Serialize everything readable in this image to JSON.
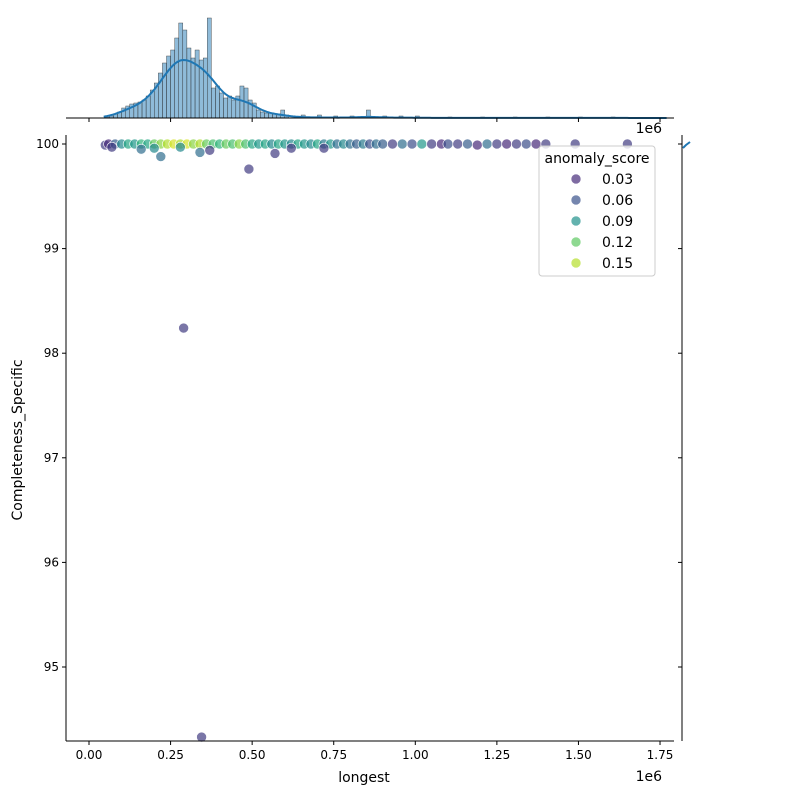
{
  "chart_data": [
    {
      "type": "scatter",
      "xlabel": "longest",
      "ylabel": "Completeness_Specific",
      "x_offset_label": "1e6",
      "xlim": [
        -0.07,
        1.77
      ],
      "ylim": [
        94.3,
        100.09
      ],
      "x_ticks": [
        0.0,
        0.25,
        0.5,
        0.75,
        1.0,
        1.25,
        1.5,
        1.75
      ],
      "x_tick_labels": [
        "0.00",
        "0.25",
        "0.50",
        "0.75",
        "1.00",
        "1.25",
        "1.50",
        "1.75"
      ],
      "y_ticks": [
        95,
        96,
        97,
        98,
        99,
        100
      ],
      "y_tick_labels": [
        "95",
        "96",
        "97",
        "98",
        "99",
        "100"
      ],
      "grid": false,
      "hue": "anomaly_score",
      "colormap": "viridis",
      "legend": {
        "title": "anomaly_score",
        "placement": "upper-right",
        "entries": [
          {
            "label": "0.03",
            "color": "#472c7a"
          },
          {
            "label": "0.06",
            "color": "#3b528b"
          },
          {
            "label": "0.09",
            "color": "#21918c"
          },
          {
            "label": "0.12",
            "color": "#5ec962"
          },
          {
            "label": "0.15",
            "color": "#b5de2b"
          }
        ]
      },
      "points": [
        [
          0.05,
          99.99,
          0.03
        ],
        [
          0.06,
          100,
          0.02
        ],
        [
          0.08,
          100,
          0.05
        ],
        [
          0.1,
          100,
          0.08
        ],
        [
          0.12,
          100,
          0.1
        ],
        [
          0.14,
          100,
          0.09
        ],
        [
          0.16,
          100,
          0.11
        ],
        [
          0.18,
          100,
          0.1
        ],
        [
          0.2,
          100,
          0.13
        ],
        [
          0.22,
          100,
          0.14
        ],
        [
          0.24,
          100,
          0.15
        ],
        [
          0.26,
          100,
          0.16
        ],
        [
          0.28,
          100,
          0.15
        ],
        [
          0.3,
          100,
          0.16
        ],
        [
          0.32,
          100,
          0.14
        ],
        [
          0.34,
          100,
          0.15
        ],
        [
          0.36,
          100,
          0.13
        ],
        [
          0.38,
          100,
          0.12
        ],
        [
          0.4,
          100,
          0.11
        ],
        [
          0.42,
          100,
          0.13
        ],
        [
          0.44,
          100,
          0.12
        ],
        [
          0.46,
          100,
          0.14
        ],
        [
          0.48,
          100,
          0.12
        ],
        [
          0.5,
          100,
          0.1
        ],
        [
          0.52,
          100,
          0.09
        ],
        [
          0.54,
          100,
          0.1
        ],
        [
          0.56,
          100,
          0.08
        ],
        [
          0.58,
          100,
          0.1
        ],
        [
          0.6,
          100,
          0.09
        ],
        [
          0.62,
          100,
          0.08
        ],
        [
          0.64,
          100,
          0.1
        ],
        [
          0.66,
          100,
          0.09
        ],
        [
          0.68,
          100,
          0.08
        ],
        [
          0.7,
          100,
          0.1
        ],
        [
          0.72,
          100,
          0.07
        ],
        [
          0.74,
          100,
          0.09
        ],
        [
          0.76,
          100,
          0.06
        ],
        [
          0.78,
          100,
          0.08
        ],
        [
          0.8,
          100,
          0.06
        ],
        [
          0.82,
          100,
          0.05
        ],
        [
          0.84,
          100,
          0.07
        ],
        [
          0.86,
          100,
          0.04
        ],
        [
          0.88,
          100,
          0.06
        ],
        [
          0.9,
          100,
          0.05
        ],
        [
          0.93,
          100,
          0.03
        ],
        [
          0.96,
          100,
          0.06
        ],
        [
          0.99,
          100,
          0.04
        ],
        [
          1.02,
          100,
          0.09
        ],
        [
          1.05,
          100,
          0.03
        ],
        [
          1.08,
          100,
          0.02
        ],
        [
          1.1,
          100,
          0.04
        ],
        [
          1.13,
          100,
          0.03
        ],
        [
          1.16,
          100,
          0.05
        ],
        [
          1.19,
          99.99,
          0.02
        ],
        [
          1.22,
          100,
          0.06
        ],
        [
          1.25,
          100,
          0.03
        ],
        [
          1.28,
          100,
          0.02
        ],
        [
          1.31,
          100,
          0.03
        ],
        [
          1.34,
          100,
          0.04
        ],
        [
          1.37,
          100,
          0.02
        ],
        [
          1.4,
          100,
          0.03
        ],
        [
          1.49,
          100,
          0.03
        ],
        [
          1.65,
          100,
          0.03
        ],
        [
          0.07,
          99.97,
          0.03
        ],
        [
          0.16,
          99.95,
          0.06
        ],
        [
          0.2,
          99.96,
          0.08
        ],
        [
          0.22,
          99.88,
          0.06
        ],
        [
          0.28,
          99.97,
          0.08
        ],
        [
          0.34,
          99.92,
          0.06
        ],
        [
          0.37,
          99.94,
          0.03
        ],
        [
          0.49,
          99.76,
          0.03
        ],
        [
          0.57,
          99.91,
          0.03
        ],
        [
          0.62,
          99.96,
          0.03
        ],
        [
          0.72,
          99.96,
          0.03
        ],
        [
          0.29,
          98.24,
          0.03
        ],
        [
          0.345,
          94.33,
          0.03
        ]
      ]
    },
    {
      "type": "bar",
      "role": "top-marginal-histogram",
      "kde": true,
      "color": "#1f77b4",
      "bin_width": 0.0125,
      "bins_start": [
        0.05,
        0.0625,
        0.075,
        0.0875,
        0.1,
        0.1125,
        0.125,
        0.1375,
        0.15,
        0.1625,
        0.175,
        0.1875,
        0.2,
        0.2125,
        0.225,
        0.2375,
        0.25,
        0.2625,
        0.275,
        0.2875,
        0.3,
        0.3125,
        0.325,
        0.3375,
        0.35,
        0.3625,
        0.375,
        0.3875,
        0.4,
        0.4125,
        0.425,
        0.4375,
        0.45,
        0.4625,
        0.475,
        0.4875,
        0.5,
        0.5125,
        0.525,
        0.5375,
        0.55,
        0.5625,
        0.575,
        0.5875,
        0.6,
        0.65,
        0.7,
        0.75,
        0.8,
        0.85,
        0.9,
        0.95,
        1.0,
        1.1,
        1.2,
        1.3,
        1.4,
        1.5,
        1.6
      ],
      "counts": [
        1,
        2,
        4,
        6,
        10,
        12,
        14,
        15,
        16,
        18,
        22,
        28,
        35,
        45,
        55,
        62,
        68,
        80,
        95,
        88,
        70,
        60,
        68,
        58,
        60,
        100,
        30,
        32,
        25,
        20,
        22,
        18,
        22,
        32,
        30,
        18,
        15,
        8,
        6,
        5,
        5,
        4,
        4,
        8,
        3,
        3,
        3,
        2,
        2,
        8,
        2,
        2,
        2,
        1,
        1,
        1,
        1,
        1,
        1
      ]
    }
  ]
}
